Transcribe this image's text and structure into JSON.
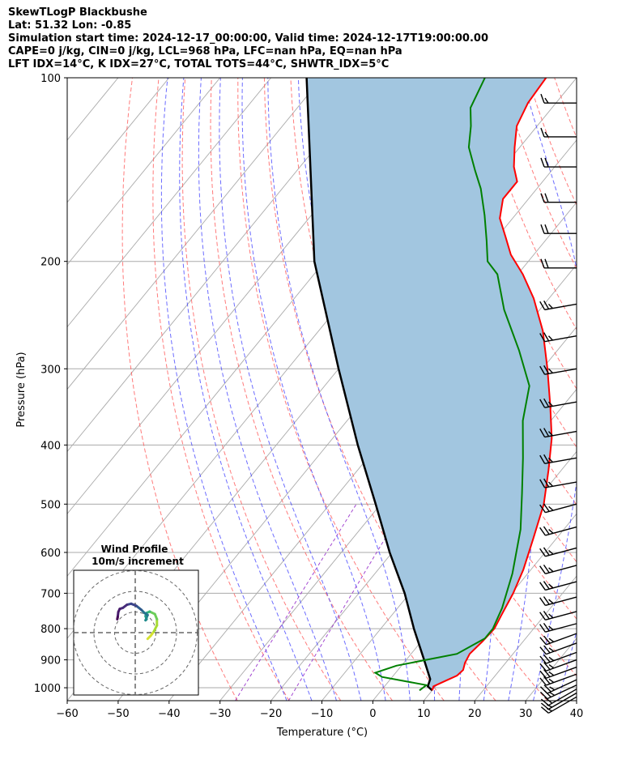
{
  "header": {
    "line1": "SkewTLogP Blackbushe",
    "line2": "Lat: 51.32   Lon: -0.85",
    "line3": "Simulation start time: 2024-12-17_00:00:00, Valid time: 2024-12-17T19:00:00.00",
    "line4": "CAPE=0 j/kg, CIN=0 j/kg, LCL=968 hPa, LFC=nan hPa, EQ=nan hPa",
    "line5": "LFT IDX=14°C, K IDX=27°C, TOTAL TOTS=44°C, SHWTR_IDX=5°C"
  },
  "colors": {
    "temperature": "#ff0000",
    "dewpoint": "#008000",
    "parcel": "#000000",
    "shading": "#a2c6e0",
    "dry_adiabat": "#ff5a5a",
    "moist_adiabat": "#3b3bff",
    "mixing_ratio": "#9933cc",
    "isotherm": "#aaaaaa",
    "isobar": "#aaaaaa"
  },
  "chart_data": [
    {
      "type": "line",
      "name": "skewt",
      "xlabel": "Temperature (°C)",
      "ylabel": "Pressure (hPa)",
      "xlim": [
        -60,
        40
      ],
      "ylim": [
        1050,
        100
      ],
      "y_scale": "log",
      "skew": "isotherms slanted",
      "grid": true,
      "x_ticks": [
        "−60",
        "−50",
        "−40",
        "−30",
        "−20",
        "−10",
        "0",
        "10",
        "20",
        "30",
        "40"
      ],
      "y_ticks": [
        "1000",
        "900",
        "800",
        "700",
        "600",
        "500",
        "400",
        "300",
        "200",
        "100"
      ],
      "series": [
        {
          "role": "temperature",
          "points": [
            [
              10,
              1010
            ],
            [
              9.6,
              995
            ],
            [
              11,
              975
            ],
            [
              12.5,
              955
            ],
            [
              12.8,
              935
            ],
            [
              12,
              910
            ],
            [
              11.5,
              880
            ],
            [
              12,
              840
            ],
            [
              12.3,
              800
            ],
            [
              11.5,
              760
            ],
            [
              10.3,
              700
            ],
            [
              8.5,
              640
            ],
            [
              5.5,
              570
            ],
            [
              2,
              500
            ],
            [
              -2.5,
              440
            ],
            [
              -7,
              390
            ],
            [
              -12.5,
              345
            ],
            [
              -19,
              300
            ],
            [
              -26,
              260
            ],
            [
              -33,
              230
            ],
            [
              -39,
              210
            ],
            [
              -44.5,
              195
            ],
            [
              -48.5,
              182
            ],
            [
              -52.5,
              170
            ],
            [
              -55,
              158
            ],
            [
              -55,
              148
            ],
            [
              -58,
              140
            ],
            [
              -61,
              130
            ],
            [
              -64,
              120
            ],
            [
              -65.5,
              110
            ],
            [
              -66,
              100
            ]
          ]
        },
        {
          "role": "dewpoint",
          "points": [
            [
              7.5,
              1010
            ],
            [
              8,
              990
            ],
            [
              -2,
              960
            ],
            [
              -4,
              945
            ],
            [
              -1,
              920
            ],
            [
              9,
              880
            ],
            [
              12,
              830
            ],
            [
              12,
              800
            ],
            [
              10.5,
              740
            ],
            [
              7,
              650
            ],
            [
              1.5,
              550
            ],
            [
              -4,
              480
            ],
            [
              -9.5,
              420
            ],
            [
              -15.5,
              365
            ],
            [
              -19.8,
              320
            ],
            [
              -27.5,
              280
            ],
            [
              -37,
              240
            ],
            [
              -44,
              210
            ],
            [
              -48,
              200
            ],
            [
              -51.5,
              185
            ],
            [
              -56,
              168
            ],
            [
              -61,
              152
            ],
            [
              -65,
              142
            ],
            [
              -70,
              130
            ],
            [
              -73,
              120
            ],
            [
              -76,
              112
            ],
            [
              -78,
              100
            ]
          ]
        },
        {
          "role": "parcel",
          "points": [
            [
              10,
              1010
            ],
            [
              8.5,
              995
            ],
            [
              7.8,
              968
            ],
            [
              3.5,
              900
            ],
            [
              -3.5,
              800
            ],
            [
              -11,
              700
            ],
            [
              -20.5,
              600
            ],
            [
              -31,
              500
            ],
            [
              -44,
              400
            ],
            [
              -60,
              300
            ],
            [
              -82,
              200
            ],
            [
              -113,
              100
            ]
          ]
        }
      ],
      "wind_barbs": {
        "pressures": [
          1035,
          1020,
          1005,
          990,
          970,
          950,
          925,
          900,
          875,
          845,
          815,
          785,
          750,
          710,
          670,
          630,
          590,
          545,
          500,
          460,
          420,
          380,
          340,
          300,
          265,
          235,
          205,
          180,
          160,
          140,
          125,
          110,
          100
        ],
        "direction_deg": [
          240,
          240,
          240,
          245,
          245,
          250,
          250,
          250,
          250,
          250,
          250,
          255,
          255,
          255,
          255,
          255,
          255,
          255,
          255,
          260,
          260,
          260,
          260,
          260,
          260,
          260,
          270,
          270,
          270,
          270,
          270,
          270,
          270
        ],
        "speed_kt": [
          15,
          15,
          20,
          25,
          25,
          25,
          25,
          25,
          25,
          25,
          25,
          25,
          25,
          25,
          25,
          25,
          25,
          25,
          25,
          25,
          25,
          25,
          25,
          25,
          25,
          25,
          20,
          20,
          20,
          20,
          15,
          15,
          15
        ]
      }
    },
    {
      "type": "line",
      "name": "hodograph",
      "title": "Wind Profile",
      "subtitle": "10m/s increment",
      "rings_ms": [
        10,
        20,
        30
      ],
      "points_uv": [
        [
          6,
          -3
        ],
        [
          7.5,
          -1.5
        ],
        [
          9,
          0.5
        ],
        [
          10.5,
          3.5
        ],
        [
          10.5,
          6.5
        ],
        [
          9.5,
          9
        ],
        [
          7,
          10.2
        ],
        [
          5.5,
          9.5
        ],
        [
          5,
          8
        ],
        [
          5.5,
          6.5
        ],
        [
          5,
          6
        ],
        [
          6,
          8.5
        ],
        [
          4.5,
          9.5
        ],
        [
          3,
          11
        ],
        [
          0.5,
          13
        ],
        [
          -2,
          14
        ],
        [
          -4,
          13.5
        ],
        [
          -6,
          12
        ],
        [
          -7.5,
          11.5
        ],
        [
          -8.2,
          10
        ],
        [
          -8.5,
          7.5
        ],
        [
          -8.7,
          6.5
        ]
      ]
    }
  ]
}
